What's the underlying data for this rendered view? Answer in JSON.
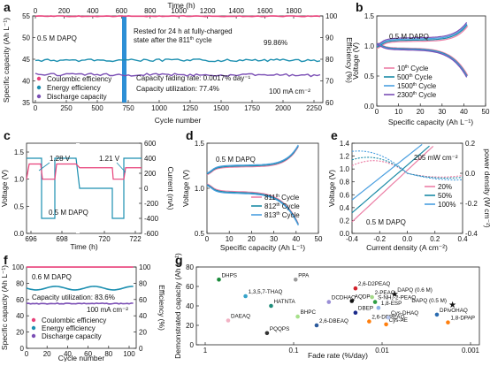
{
  "panels": {
    "a": {
      "label": "a",
      "top_axis": "Time (h)",
      "x_axis": "Cycle number",
      "y_left": "Specific capacity (Ah L⁻¹)",
      "y_right": "Efficiency (%)",
      "note_conc": "0.5 M DAPQ",
      "note_rest1": "Rested for 24 h at fully-charged",
      "note_rest2": "state after the 811",
      "note_rest2_sup": "th",
      "note_rest2_end": " cycle",
      "note_eff": "99.86%",
      "note_fade": "Capacity fading rate: 0.0017% day⁻¹",
      "note_util": "Capacity utilization: 77.4%",
      "note_cur": "100 mA cm⁻²",
      "legend": [
        "Coulombic efficiency",
        "Energy efficiency",
        "Discharge capacity"
      ]
    },
    "b": {
      "label": "b",
      "x_axis": "Specific capacity (Ah L⁻¹)",
      "y_axis": "Voltage (V)",
      "note": "0.5 M DAPQ",
      "legend": [
        "10",
        "500",
        "1500",
        "2300"
      ],
      "legend_sup": "th",
      "legend_word": " Cycle"
    },
    "c": {
      "label": "c",
      "x_axis": "Time (h)",
      "y_left": "Voltage (V)",
      "y_right": "Current (mA)",
      "v1": "1.28 V",
      "v2": "1.21 V",
      "note": "0.5 M DAPQ"
    },
    "d": {
      "label": "d",
      "x_axis": "Specific capacity (Ah L⁻¹)",
      "y_axis": "Voltage (V)",
      "note": "0.5 M DAPQ",
      "legend": [
        "811",
        "812",
        "813"
      ],
      "legend_sup": "th",
      "legend_word": " Cycle"
    },
    "e": {
      "label": "e",
      "x_axis": "Current density (A cm⁻²)",
      "y_left": "Voltage (V)",
      "y_right": "power density (W cm⁻²)",
      "peak": "205 mW cm⁻²",
      "note": "0.5 M DAPQ",
      "legend": [
        "20%",
        "50%",
        "100%"
      ]
    },
    "f": {
      "label": "f",
      "x_axis": "Cycle number",
      "y_left": "Specific capacity (Ah L⁻¹)",
      "y_right": "Efficiency (%)",
      "note_conc": "0.6 M DAPQ",
      "note_util": "Capacity utilization: 83.6%",
      "note_cur": "100 mA cm⁻²",
      "legend": [
        "Coulombic efficiency",
        "Energy efficiency",
        "Discharge capacity"
      ]
    },
    "g": {
      "label": "g",
      "x_axis": "Fade rate (%/day)",
      "y_axis": "Demonstrated capacity (Ah L⁻¹)"
    }
  },
  "chart_data": [
    {
      "panel": "a",
      "type": "line",
      "x_range": [
        0,
        2300
      ],
      "top_axis_range": [
        0,
        1900
      ],
      "ylim_left": [
        35,
        55
      ],
      "ylim_right": [
        60,
        100
      ],
      "xticks": [
        "0",
        "250",
        "500",
        "750",
        "1000",
        "1250",
        "1500",
        "1750",
        "2000",
        "2250"
      ],
      "top_ticks": [
        "0",
        "200",
        "400",
        "600",
        "800",
        "1000",
        "1200",
        "1400",
        "1600",
        "1800"
      ],
      "yticks_left": [
        "35",
        "40",
        "45",
        "50",
        "55"
      ],
      "yticks_right": [
        "60",
        "70",
        "80",
        "90",
        "100"
      ],
      "rest_cycle": 811,
      "series": [
        {
          "name": "Coulombic efficiency",
          "axis": "right",
          "value": 99.86,
          "color": "#e8417a"
        },
        {
          "name": "Energy efficiency",
          "axis": "right",
          "value": 79.5,
          "color": "#1c8fb0"
        },
        {
          "name": "Discharge capacity",
          "axis": "left",
          "start": 41.5,
          "end": 41.3,
          "color": "#7b4fb5"
        }
      ]
    },
    {
      "panel": "b",
      "type": "line",
      "xlim": [
        0,
        50
      ],
      "ylim": [
        0,
        1.5
      ],
      "xticks": [
        "0",
        "10",
        "20",
        "30",
        "40",
        "50"
      ],
      "yticks": [
        "0.0",
        "0.5",
        "1.0",
        "1.5"
      ],
      "series": [
        {
          "name": "10th Cycle",
          "color": "#ec7fa6",
          "capacity": 41.8
        },
        {
          "name": "500th Cycle",
          "color": "#1b8aa6",
          "capacity": 41.5
        },
        {
          "name": "1500th Cycle",
          "color": "#4a9fe0",
          "capacity": 41.4
        },
        {
          "name": "2300th Cycle",
          "color": "#7b4fb5",
          "capacity": 41.3
        }
      ]
    },
    {
      "panel": "c",
      "type": "line",
      "xticks": [
        "696",
        "698",
        "720",
        "722"
      ],
      "yticks_left": [
        "0.0",
        "0.5",
        "1.0",
        "1.5"
      ],
      "yticks_right": [
        "-600",
        "-400",
        "-200",
        "0",
        "200",
        "400",
        "600"
      ],
      "voltage_before": 1.28,
      "voltage_after": 1.21
    },
    {
      "panel": "d",
      "type": "line",
      "xlim": [
        0,
        50
      ],
      "ylim": [
        0.5,
        1.5
      ],
      "xticks": [
        "0",
        "10",
        "20",
        "30",
        "40",
        "50"
      ],
      "yticks": [
        "0.5",
        "1.0",
        "1.5"
      ],
      "series": [
        {
          "name": "811th Cycle",
          "color": "#ec7fa6",
          "capacity": 41
        },
        {
          "name": "812th Cycle",
          "color": "#1b8aa6",
          "capacity": 41
        },
        {
          "name": "813th Cycle",
          "color": "#4a9fe0",
          "capacity": 41
        }
      ]
    },
    {
      "panel": "e",
      "type": "line",
      "xlim": [
        -0.4,
        0.4
      ],
      "ylim_left": [
        0,
        1.4
      ],
      "ylim_right": [
        -0.4,
        0.2
      ],
      "xticks": [
        "-0.4",
        "-0.2",
        "0.0",
        "0.2",
        "0.4"
      ],
      "yticks_left": [
        "0.0",
        "0.2",
        "0.4",
        "0.6",
        "0.8",
        "1.0",
        "1.2",
        "1.4"
      ],
      "yticks_right": [
        "-0.4",
        "-0.2",
        "0.0",
        "0.2"
      ],
      "peak_power_mW": 205,
      "series": [
        {
          "name": "20%",
          "color": "#ec7fa6",
          "ocv": 0.98
        },
        {
          "name": "50%",
          "color": "#1b8aa6",
          "ocv": 1.06
        },
        {
          "name": "100%",
          "color": "#4a9fe0",
          "ocv": 1.2
        }
      ]
    },
    {
      "panel": "f",
      "type": "line",
      "xlim": [
        0,
        100
      ],
      "ylim_left": [
        0,
        100
      ],
      "ylim_right": [
        0,
        100
      ],
      "xticks": [
        "0",
        "20",
        "40",
        "60",
        "80",
        "100"
      ],
      "yticks_left": [
        "0",
        "20",
        "40",
        "60",
        "80",
        "100"
      ],
      "yticks_right": [
        "0",
        "20",
        "40",
        "60",
        "80",
        "100"
      ],
      "series": [
        {
          "name": "Coulombic efficiency",
          "value": 99.9,
          "color": "#e8417a"
        },
        {
          "name": "Energy efficiency",
          "value": 74,
          "color": "#1c8fb0"
        },
        {
          "name": "Discharge capacity",
          "value": 55,
          "color": "#7b4fb5"
        }
      ]
    },
    {
      "panel": "g",
      "type": "scatter",
      "x_scale": "log-reversed",
      "xlim": [
        1,
        0.001
      ],
      "ylim": [
        0,
        80
      ],
      "xticks": [
        "1",
        "0.1",
        "0.01",
        "0.001"
      ],
      "yticks": [
        "0",
        "20",
        "40",
        "60",
        "80"
      ],
      "points": [
        {
          "label": "DHPS",
          "x": 0.7,
          "y": 67,
          "color": "#1a8a3a"
        },
        {
          "label": "1,3,5,7-THAQ",
          "x": 0.35,
          "y": 50,
          "color": "#36a3c9"
        },
        {
          "label": "PPA",
          "x": 0.095,
          "y": 67,
          "color": "#9a9a9a"
        },
        {
          "label": "2,6-D2PEAQ",
          "x": 0.02,
          "y": 58,
          "color": "#d2222c"
        },
        {
          "label": "DAPQ (0.6 M)",
          "x": 0.0072,
          "y": 52,
          "color": "#d2222c"
        },
        {
          "label": "DAPQ (0.5 M)",
          "x": 0.0016,
          "y": 41,
          "color": "#d2222c"
        },
        {
          "label": "AQDP",
          "x": 0.022,
          "y": 45,
          "color": "#111111"
        },
        {
          "label": "S-NH₂-2-PEAQ",
          "x": 0.012,
          "y": 44,
          "color": "#2f9e44"
        },
        {
          "label": "1,8-ESP",
          "x": 0.011,
          "y": 38,
          "color": "#8fb2e6"
        },
        {
          "label": "2-PEAQ",
          "x": 0.013,
          "y": 49,
          "color": "#a5d98a"
        },
        {
          "label": "DCDHAQ",
          "x": 0.04,
          "y": 44,
          "color": "#9a8fd6"
        },
        {
          "label": "DBEP",
          "x": 0.02,
          "y": 33,
          "color": "#1b2a8a"
        },
        {
          "label": "HATNTA",
          "x": 0.18,
          "y": 40,
          "color": "#1f8c7a"
        },
        {
          "label": "BHPC",
          "x": 0.09,
          "y": 29,
          "color": "#a6e08a"
        },
        {
          "label": "2,6-DBEAQ",
          "x": 0.055,
          "y": 20,
          "color": "#2b5a9c"
        },
        {
          "label": "DAEAQ",
          "x": 0.55,
          "y": 25,
          "color": "#f2b2c4"
        },
        {
          "label": "PQQPS",
          "x": 0.2,
          "y": 12,
          "color": "#333333"
        },
        {
          "label": "2,6-DPPEAQ",
          "x": 0.014,
          "y": 24,
          "color": "#ff7f0e"
        },
        {
          "label": "Cys-AE",
          "x": 0.009,
          "y": 21,
          "color": "#ff7f0e"
        },
        {
          "label": "Cys-DHAQ",
          "x": 0.0085,
          "y": 28,
          "color": "#b7c6ee"
        },
        {
          "label": "DPivOHAQ",
          "x": 0.0024,
          "y": 31,
          "color": "#2b6cb0"
        },
        {
          "label": "1,8-DPAP",
          "x": 0.0018,
          "y": 23,
          "color": "#ff7f0e"
        }
      ]
    }
  ]
}
